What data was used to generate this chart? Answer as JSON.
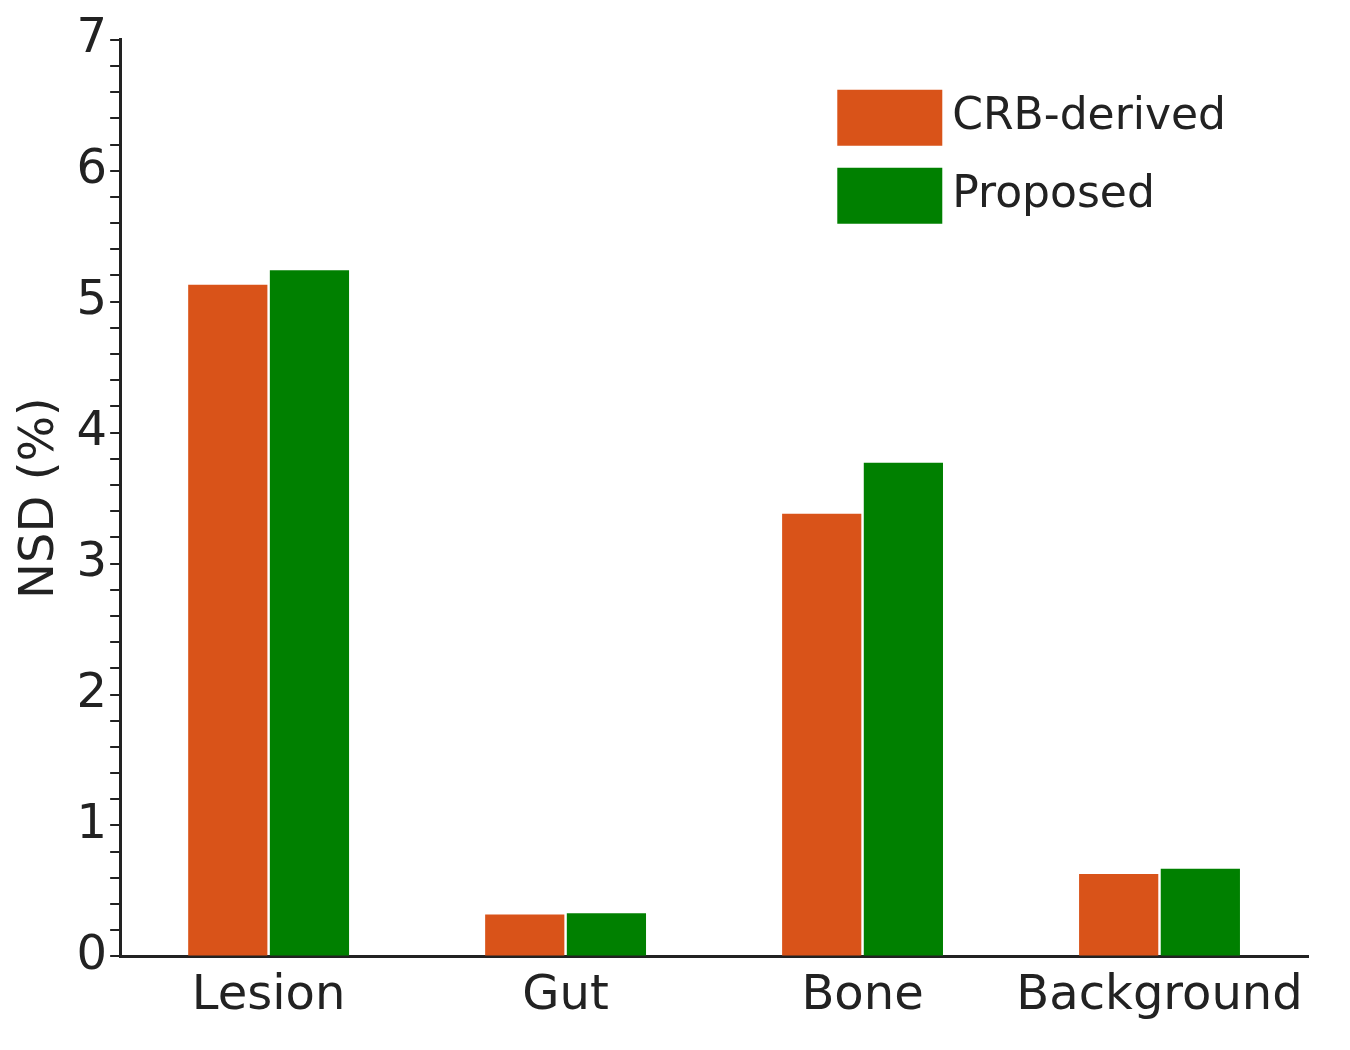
{
  "chart_data": {
    "type": "bar",
    "ylabel": "NSD (%)",
    "categories": [
      "Lesion",
      "Gut",
      "Bone",
      "Background"
    ],
    "series": [
      {
        "name": "CRB-derived",
        "color": "#d95319",
        "values": [
          5.13,
          0.32,
          3.38,
          0.63
        ]
      },
      {
        "name": "Proposed",
        "color": "#008000",
        "values": [
          5.24,
          0.33,
          3.77,
          0.67
        ]
      }
    ],
    "ylim": [
      0,
      7
    ],
    "yticks": [
      0,
      {
        "value": 0.2,
        "label": null
      },
      {
        "value": 0.4,
        "label": null
      },
      {
        "value": 0.6,
        "label": null
      },
      {
        "value": 0.8,
        "label": null
      },
      1,
      {
        "value": 1.2,
        "label": null
      },
      {
        "value": 1.4,
        "label": null
      },
      {
        "value": 1.6,
        "label": null
      },
      {
        "value": 1.8,
        "label": null
      },
      2,
      {
        "value": 2.2,
        "label": null
      },
      {
        "value": 2.4,
        "label": null
      },
      {
        "value": 2.6,
        "label": null
      },
      {
        "value": 2.8,
        "label": null
      },
      3,
      {
        "value": 3.2,
        "label": null
      },
      {
        "value": 3.4,
        "label": null
      },
      {
        "value": 3.6,
        "label": null
      },
      {
        "value": 3.8,
        "label": null
      },
      4,
      {
        "value": 4.2,
        "label": null
      },
      {
        "value": 4.4,
        "label": null
      },
      {
        "value": 4.6,
        "label": null
      },
      {
        "value": 4.8,
        "label": null
      },
      5,
      {
        "value": 5.2,
        "label": null
      },
      {
        "value": 5.4,
        "label": null
      },
      {
        "value": 5.6,
        "label": null
      },
      {
        "value": 5.8,
        "label": null
      },
      6,
      {
        "value": 6.2,
        "label": null
      },
      {
        "value": 6.4,
        "label": null
      },
      {
        "value": 6.6,
        "label": null
      },
      {
        "value": 6.8,
        "label": null
      },
      7
    ],
    "grid": false,
    "legend": "top right"
  }
}
